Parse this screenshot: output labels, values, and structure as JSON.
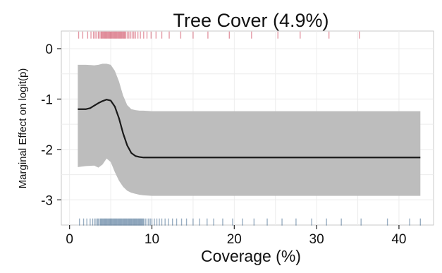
{
  "chart_data": {
    "type": "line",
    "title": "Tree Cover (4.9%)",
    "xlabel": "Coverage (%)",
    "ylabel": "Marginal Effect on logit(p)",
    "xlim": [
      -1,
      44.2
    ],
    "ylim": [
      -3.5,
      0.35
    ],
    "x_ticks": [
      0,
      10,
      20,
      30,
      40
    ],
    "y_ticks": [
      0,
      -1,
      -2,
      -3
    ],
    "grid": true,
    "series": [
      {
        "kind": "line",
        "color": "#1a1a1a",
        "x": [
          1.0,
          2.0,
          2.5,
          3.0,
          3.5,
          4.0,
          4.5,
          5.0,
          5.5,
          6.0,
          6.5,
          7.0,
          7.5,
          8.0,
          8.5,
          9.0,
          10,
          15,
          20,
          25,
          30,
          35,
          40,
          42.6
        ],
        "y": [
          -1.2,
          -1.2,
          -1.18,
          -1.13,
          -1.08,
          -1.04,
          -1.01,
          -1.03,
          -1.15,
          -1.38,
          -1.68,
          -1.92,
          -2.07,
          -2.13,
          -2.15,
          -2.16,
          -2.16,
          -2.16,
          -2.16,
          -2.16,
          -2.16,
          -2.16,
          -2.16,
          -2.16
        ]
      },
      {
        "kind": "band",
        "color": "#bdbdbd",
        "x": [
          1.0,
          2.0,
          3.0,
          3.5,
          4.0,
          4.5,
          5.0,
          5.5,
          6.0,
          6.5,
          7.0,
          7.5,
          8.0,
          8.5,
          9.0,
          10,
          20,
          30,
          42.6
        ],
        "upper": [
          -0.32,
          -0.32,
          -0.33,
          -0.32,
          -0.3,
          -0.3,
          -0.32,
          -0.44,
          -0.65,
          -0.93,
          -1.12,
          -1.2,
          -1.22,
          -1.23,
          -1.23,
          -1.24,
          -1.24,
          -1.24,
          -1.24
        ],
        "lower": [
          -2.35,
          -2.33,
          -2.32,
          -2.36,
          -2.3,
          -2.18,
          -2.25,
          -2.45,
          -2.62,
          -2.74,
          -2.82,
          -2.86,
          -2.88,
          -2.9,
          -2.91,
          -2.92,
          -2.92,
          -2.92,
          -2.92
        ]
      }
    ],
    "rug_top": {
      "color": "#c41e3a",
      "y": 0.27,
      "x": [
        1.1,
        1.6,
        2.2,
        2.6,
        2.9,
        3.1,
        3.3,
        3.5,
        3.6,
        3.8,
        3.9,
        4.0,
        4.1,
        4.2,
        4.3,
        4.4,
        4.5,
        4.6,
        4.7,
        4.8,
        4.9,
        5.0,
        5.1,
        5.2,
        5.3,
        5.4,
        5.5,
        5.6,
        5.7,
        5.8,
        5.9,
        6.0,
        6.1,
        6.2,
        6.3,
        6.4,
        6.5,
        6.6,
        6.7,
        6.8,
        7.0,
        7.2,
        7.4,
        7.6,
        7.8,
        8.0,
        8.3,
        8.6,
        9.0,
        9.4,
        9.9,
        10.5,
        11.2,
        12.1,
        13.5,
        15.0,
        16.8,
        19.4,
        22.1,
        25.3,
        28.0,
        31.5,
        35.2
      ]
    },
    "rug_bottom": {
      "color": "#1f4e79",
      "y": -3.44,
      "x": [
        1.2,
        1.7,
        2.1,
        2.5,
        2.8,
        3.0,
        3.2,
        3.4,
        3.5,
        3.7,
        3.8,
        3.9,
        4.0,
        4.1,
        4.2,
        4.3,
        4.4,
        4.5,
        4.6,
        4.7,
        4.8,
        4.9,
        5.0,
        5.1,
        5.2,
        5.3,
        5.4,
        5.5,
        5.6,
        5.7,
        5.8,
        5.9,
        6.0,
        6.1,
        6.2,
        6.3,
        6.4,
        6.5,
        6.6,
        6.7,
        6.8,
        6.9,
        7.0,
        7.1,
        7.2,
        7.3,
        7.4,
        7.5,
        7.6,
        7.7,
        7.8,
        7.9,
        8.0,
        8.1,
        8.2,
        8.3,
        8.4,
        8.5,
        8.6,
        8.7,
        8.8,
        8.9,
        9.0,
        9.2,
        9.4,
        9.6,
        9.8,
        10.0,
        10.3,
        10.6,
        10.9,
        11.2,
        11.6,
        12.0,
        12.5,
        13.0,
        13.6,
        14.2,
        15.0,
        15.8,
        16.7,
        17.5,
        18.6,
        19.8,
        21.0,
        22.4,
        24.0,
        25.8,
        27.5,
        29.4,
        31.2,
        33.0,
        35.4,
        38.6,
        41.3,
        42.6
      ]
    }
  }
}
